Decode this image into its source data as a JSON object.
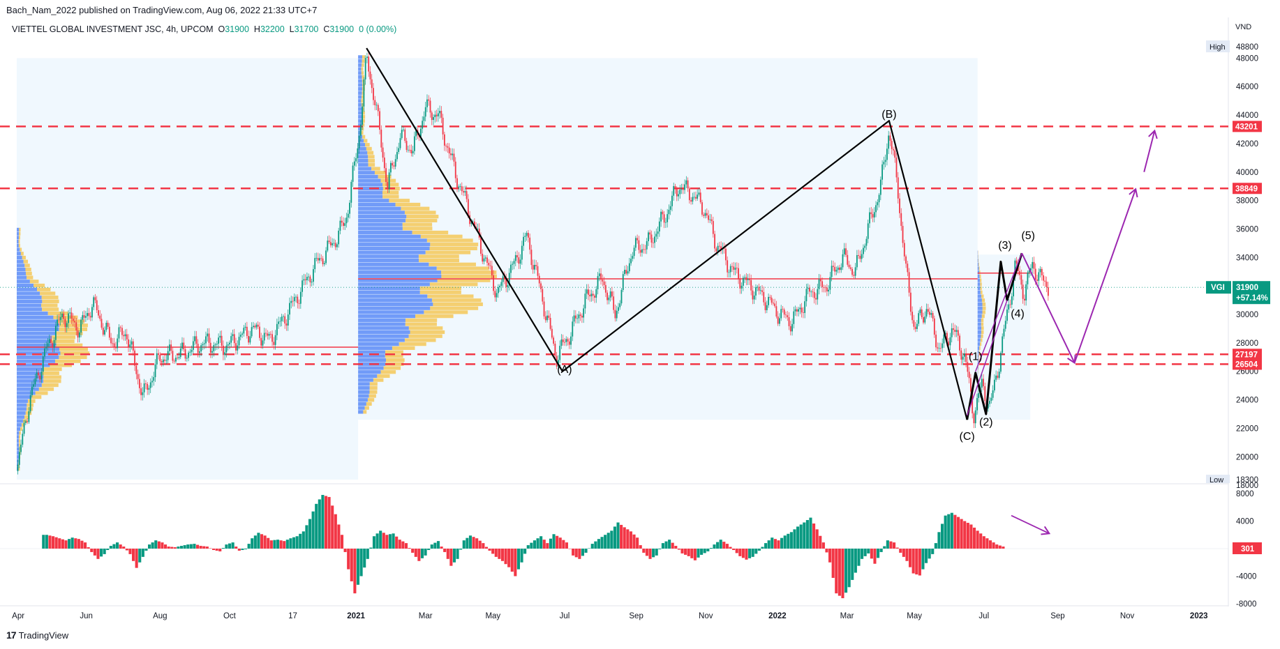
{
  "header": {
    "published_line": "Bach_Nam_2022 published on TradingView.com, Aug 06, 2022 21:33 UTC+7",
    "symbol": "VIETTEL GLOBAL INVESTMENT JSC, 4h, UPCOM",
    "o_label": "O",
    "o_value": "31900",
    "h_label": "H",
    "h_value": "32200",
    "l_label": "L",
    "l_value": "31700",
    "c_label": "C",
    "c_value": "31900",
    "change": "0 (0.00%)"
  },
  "footer": {
    "logo": "17",
    "brand": "TradingView"
  },
  "colors": {
    "up": "#089981",
    "down": "#f23645",
    "accent": "#9c27b0",
    "dashed": "#f23645"
  },
  "chart_data": {
    "type": "line",
    "title": "",
    "currency_label": "VND",
    "price_axis": {
      "ylim": [
        18300,
        48800
      ],
      "ticks": [
        "48000",
        "46000",
        "44000",
        "42000",
        "40000",
        "38000",
        "36000",
        "34000",
        "32000",
        "30000",
        "28000",
        "26000",
        "24000",
        "22000",
        "20000",
        "18000"
      ],
      "high_label": "High",
      "high_value": "48800",
      "low_label": "Low",
      "low_value": "18300"
    },
    "time_axis": {
      "labels": [
        "Apr",
        "Jun",
        "Aug",
        "Oct",
        "17",
        "2021",
        "Mar",
        "May",
        "Jul",
        "Sep",
        "Nov",
        "2022",
        "Mar",
        "May",
        "Jul",
        "Sep",
        "Nov",
        "2023"
      ]
    },
    "horizontal_levels": [
      {
        "value": 43201,
        "label": "43201"
      },
      {
        "value": 38849,
        "label": "38849"
      },
      {
        "value": 27197,
        "label": "27197"
      },
      {
        "value": 26504,
        "label": "26504"
      }
    ],
    "last_price": {
      "ticker": "VGI",
      "value": "31900",
      "change": "+57.14%"
    },
    "price_path": [
      {
        "t": 0,
        "y": 19000
      },
      {
        "t": 6,
        "y": 24000
      },
      {
        "t": 14,
        "y": 27500
      },
      {
        "t": 22,
        "y": 30000
      },
      {
        "t": 30,
        "y": 29000
      },
      {
        "t": 36,
        "y": 30800
      },
      {
        "t": 45,
        "y": 28000
      },
      {
        "t": 52,
        "y": 28800
      },
      {
        "t": 60,
        "y": 24200
      },
      {
        "t": 68,
        "y": 27000
      },
      {
        "t": 78,
        "y": 27200
      },
      {
        "t": 88,
        "y": 28000
      },
      {
        "t": 100,
        "y": 27800
      },
      {
        "t": 112,
        "y": 29000
      },
      {
        "t": 120,
        "y": 28200
      },
      {
        "t": 128,
        "y": 30000
      },
      {
        "t": 136,
        "y": 32000
      },
      {
        "t": 142,
        "y": 33500
      },
      {
        "t": 150,
        "y": 35000
      },
      {
        "t": 156,
        "y": 36500
      },
      {
        "t": 162,
        "y": 42000
      },
      {
        "t": 166,
        "y": 48000
      },
      {
        "t": 170,
        "y": 45000
      },
      {
        "t": 176,
        "y": 39000
      },
      {
        "t": 182,
        "y": 42500
      },
      {
        "t": 188,
        "y": 41500
      },
      {
        "t": 194,
        "y": 44500
      },
      {
        "t": 200,
        "y": 44000
      },
      {
        "t": 208,
        "y": 40000
      },
      {
        "t": 214,
        "y": 37500
      },
      {
        "t": 222,
        "y": 34000
      },
      {
        "t": 228,
        "y": 31500
      },
      {
        "t": 236,
        "y": 33500
      },
      {
        "t": 242,
        "y": 35500
      },
      {
        "t": 248,
        "y": 32000
      },
      {
        "t": 256,
        "y": 27000
      },
      {
        "t": 262,
        "y": 28500
      },
      {
        "t": 270,
        "y": 31000
      },
      {
        "t": 278,
        "y": 32500
      },
      {
        "t": 284,
        "y": 30000
      },
      {
        "t": 292,
        "y": 34500
      },
      {
        "t": 300,
        "y": 35000
      },
      {
        "t": 308,
        "y": 37000
      },
      {
        "t": 314,
        "y": 39000
      },
      {
        "t": 320,
        "y": 38500
      },
      {
        "t": 326,
        "y": 37500
      },
      {
        "t": 332,
        "y": 35000
      },
      {
        "t": 340,
        "y": 33000
      },
      {
        "t": 348,
        "y": 32000
      },
      {
        "t": 356,
        "y": 31000
      },
      {
        "t": 362,
        "y": 30000
      },
      {
        "t": 368,
        "y": 29500
      },
      {
        "t": 376,
        "y": 31500
      },
      {
        "t": 384,
        "y": 32000
      },
      {
        "t": 392,
        "y": 34000
      },
      {
        "t": 398,
        "y": 33000
      },
      {
        "t": 404,
        "y": 36000
      },
      {
        "t": 410,
        "y": 39000
      },
      {
        "t": 414,
        "y": 43000
      },
      {
        "t": 418,
        "y": 39000
      },
      {
        "t": 422,
        "y": 33000
      },
      {
        "t": 426,
        "y": 29000
      },
      {
        "t": 432,
        "y": 30500
      },
      {
        "t": 438,
        "y": 27500
      },
      {
        "t": 444,
        "y": 29000
      },
      {
        "t": 450,
        "y": 27000
      },
      {
        "t": 454,
        "y": 23000
      },
      {
        "t": 458,
        "y": 25000
      },
      {
        "t": 462,
        "y": 23500
      },
      {
        "t": 466,
        "y": 26500
      },
      {
        "t": 470,
        "y": 30000
      },
      {
        "t": 474,
        "y": 33500
      },
      {
        "t": 478,
        "y": 31500
      },
      {
        "t": 482,
        "y": 33500
      },
      {
        "t": 486,
        "y": 32500
      },
      {
        "t": 490,
        "y": 31900
      }
    ],
    "wave_labels": [
      {
        "label": "(A)",
        "t": 260,
        "y": 25900
      },
      {
        "label": "(B)",
        "t": 414,
        "y": 43800
      },
      {
        "label": "(C)",
        "t": 451,
        "y": 21200
      },
      {
        "label": "(1)",
        "t": 455,
        "y": 26800
      },
      {
        "label": "(2)",
        "t": 460,
        "y": 22200
      },
      {
        "label": "(3)",
        "t": 469,
        "y": 34600
      },
      {
        "label": "(4)",
        "t": 475,
        "y": 29800
      },
      {
        "label": "(5)",
        "t": 480,
        "y": 35300
      }
    ],
    "wave_lines": [
      {
        "t": 166,
        "y": 48700
      },
      {
        "t": 259,
        "y": 26000
      },
      {
        "t": 414,
        "y": 43600
      },
      {
        "t": 451,
        "y": 22600
      }
    ],
    "impulse_lines": [
      {
        "t": 451,
        "y": 22600
      },
      {
        "t": 455,
        "y": 25900
      },
      {
        "t": 460,
        "y": 23000
      },
      {
        "t": 467,
        "y": 33700
      },
      {
        "t": 470,
        "y": 31000
      },
      {
        "t": 477,
        "y": 34300
      }
    ],
    "projection": [
      {
        "t": 477,
        "y": 34300
      },
      {
        "t": 502,
        "y": 26600
      },
      {
        "t": 531,
        "y": 38800
      }
    ],
    "projection_top": [
      {
        "t": 535,
        "y": 40000
      },
      {
        "t": 540,
        "y": 42900
      }
    ],
    "oscillator": {
      "ylim": [
        -8000,
        8000
      ],
      "ticks": [
        "8000",
        "4000",
        "0",
        "-4000",
        "-8000"
      ],
      "last_value": "301",
      "values": [
        2000,
        1800,
        1500,
        1200,
        1600,
        1400,
        900,
        -500,
        -1500,
        -800,
        400,
        900,
        300,
        -800,
        -2800,
        -1200,
        600,
        1200,
        900,
        300,
        200,
        400,
        600,
        700,
        400,
        300,
        -200,
        -400,
        600,
        900,
        -300,
        -100,
        1500,
        2300,
        1900,
        1200,
        1300,
        1100,
        1500,
        1800,
        2500,
        4300,
        6500,
        7800,
        7500,
        5000,
        2000,
        -3000,
        -6500,
        -4000,
        -1500,
        1800,
        2600,
        2000,
        2200,
        1300,
        800,
        -600,
        -1800,
        -1000,
        600,
        1100,
        -500,
        -2500,
        -1500,
        1200,
        1900,
        1500,
        800,
        -300,
        -1200,
        -1800,
        -2700,
        -4000,
        -2000,
        500,
        1200,
        1800,
        800,
        2100,
        1600,
        900,
        -1000,
        -1500,
        -600,
        700,
        1400,
        2000,
        2600,
        3800,
        3100,
        2500,
        1600,
        -600,
        -1500,
        -1000,
        800,
        1300,
        400,
        -700,
        -1100,
        -1700,
        -900,
        -400,
        600,
        1300,
        700,
        -200,
        -1100,
        -1600,
        -1200,
        -300,
        800,
        1600,
        1200,
        1900,
        2400,
        3200,
        3800,
        4500,
        2800,
        900,
        -2000,
        -6500,
        -7200,
        -5600,
        -3500,
        -1500,
        -700,
        -2200,
        -500,
        1200,
        900,
        -600,
        -1800,
        -3600,
        -3900,
        -2100,
        -800,
        2400,
        4800,
        5200,
        4600,
        4000,
        3500,
        2600,
        1800,
        1200,
        600,
        301
      ],
      "arrow_note": ""
    }
  }
}
